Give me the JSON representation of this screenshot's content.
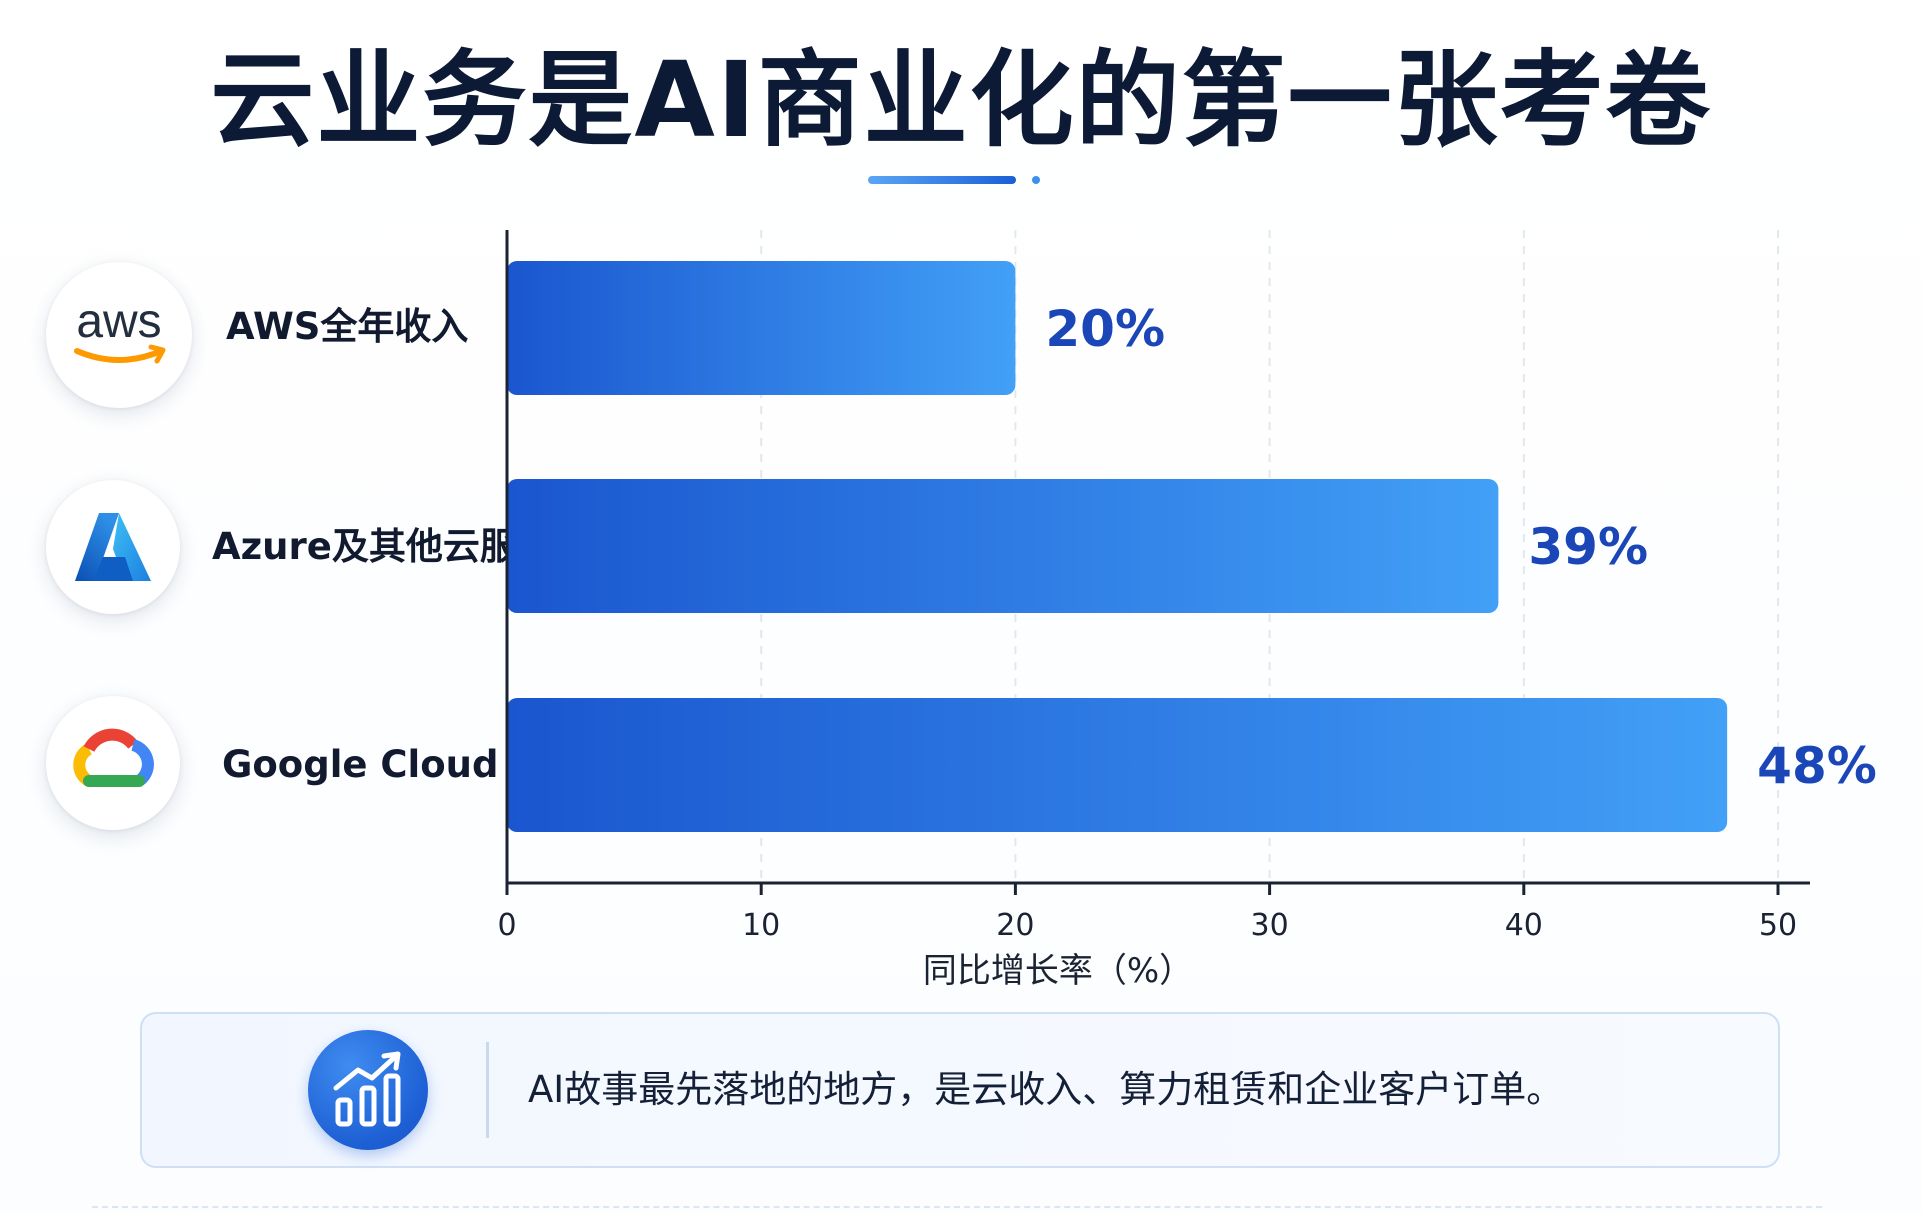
{
  "title": "云业务是AI商业化的第一张考卷",
  "chart_data": {
    "type": "bar",
    "orientation": "horizontal",
    "categories": [
      "AWS全年收入",
      "Azure及其他云服务",
      "Google Cloud"
    ],
    "values": [
      20,
      39,
      48
    ],
    "value_labels": [
      "20%",
      "39%",
      "48%"
    ],
    "xlabel": "同比增长率（%）",
    "xlim": [
      0,
      50
    ],
    "xticks": [
      0,
      10,
      20,
      30,
      40,
      50
    ],
    "grid": "vertical-dashed",
    "colors": {
      "bar_start": "#1a56cf",
      "bar_end": "#42a0f7",
      "value_label": "#1a46b8",
      "axis": "#1b2333",
      "grid": "#e3e7ef"
    }
  },
  "logos": {
    "aws": {
      "text": "aws",
      "icon": "aws-logo-icon"
    },
    "azure": {
      "icon": "azure-logo-icon"
    },
    "google": {
      "icon": "google-cloud-logo-icon"
    }
  },
  "summary": {
    "icon": "bar-chart-trend-icon",
    "text": "AI故事最先落地的地方，是云收入、算力租赁和企业客户订单。"
  }
}
